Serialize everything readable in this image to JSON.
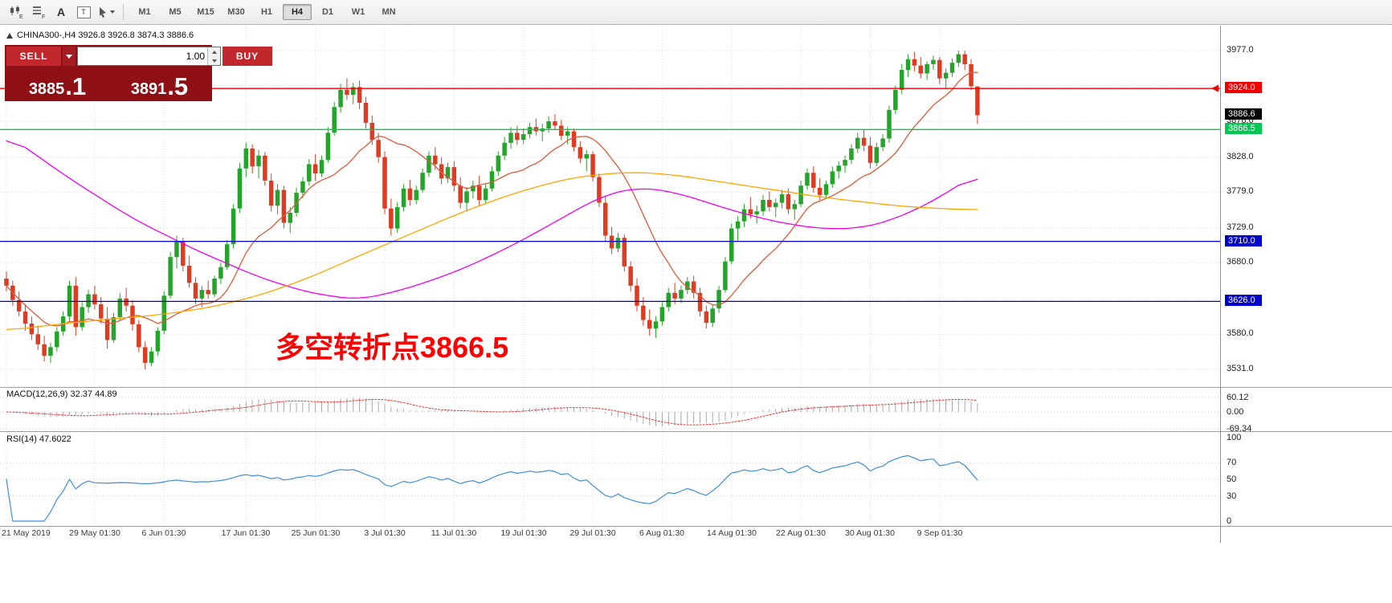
{
  "toolbar": {
    "timeframes": [
      "M1",
      "M5",
      "M15",
      "M30",
      "H1",
      "H4",
      "D1",
      "W1",
      "MN"
    ],
    "active_timeframe": "H4",
    "icon_badges": {
      "chart": "E",
      "list": "F",
      "text_tool": "A",
      "textbox": "T"
    }
  },
  "chart_header": {
    "text": "CHINA300-,H4  3926.8 3926.8 3874.3 3886.6"
  },
  "trade_panel": {
    "sell_label": "SELL",
    "buy_label": "BUY",
    "volume": "1.00",
    "sell_price_main": "3885",
    "sell_price_frac": ".1",
    "buy_price_main": "3891",
    "buy_price_frac": ".5"
  },
  "annotation": {
    "text": "多空转折点3866.5",
    "color": "#ff0000"
  },
  "price_axis": {
    "grid_labels": [
      {
        "text": "3977.0",
        "price": 3977
      },
      {
        "text": "3878.0",
        "price": 3878
      },
      {
        "text": "3828.0",
        "price": 3828
      },
      {
        "text": "3779.0",
        "price": 3779
      },
      {
        "text": "3729.0",
        "price": 3729
      },
      {
        "text": "3680.0",
        "price": 3680
      },
      {
        "text": "3580.0",
        "price": 3580
      },
      {
        "text": "3531.0",
        "price": 3531
      }
    ],
    "line_labels": [
      {
        "text": "3924.0",
        "price": 3924,
        "color": "#ee0000"
      },
      {
        "text": "3886.6",
        "price": 3886.6,
        "color": "#000000"
      },
      {
        "text": "3866.5",
        "price": 3866.5,
        "color": "#00c853"
      },
      {
        "text": "3710.0",
        "price": 3710,
        "color": "#0000cd"
      },
      {
        "text": "3626.0",
        "price": 3626,
        "color": "#0000cd"
      }
    ]
  },
  "macd": {
    "label": "MACD(12,26,9)",
    "values": "32.37 44.89",
    "axis": [
      {
        "text": "60.12",
        "value": 60.12
      },
      {
        "text": "0.00",
        "value": 0
      },
      {
        "text": "-69.34",
        "value": -69.34
      }
    ],
    "fast": 12,
    "slow": 26,
    "signal": 9
  },
  "rsi": {
    "label": "RSI(14)",
    "value": "47.6022",
    "period": 14,
    "axis": [
      {
        "text": "100",
        "value": 100
      },
      {
        "text": "70",
        "value": 70
      },
      {
        "text": "50",
        "value": 50
      },
      {
        "text": "30",
        "value": 30
      },
      {
        "text": "0",
        "value": 0
      }
    ],
    "levels": [
      70,
      50,
      30
    ]
  },
  "time_axis": {
    "labels": [
      {
        "bar": 0,
        "text": "21 May 2019"
      },
      {
        "bar": 14,
        "text": "29 May 01:30"
      },
      {
        "bar": 25,
        "text": "6 Jun 01:30"
      },
      {
        "bar": 38,
        "text": "17 Jun 01:30"
      },
      {
        "bar": 49,
        "text": "25 Jun 01:30"
      },
      {
        "bar": 60,
        "text": "3 Jul 01:30"
      },
      {
        "bar": 71,
        "text": "11 Jul 01:30"
      },
      {
        "bar": 82,
        "text": "19 Jul 01:30"
      },
      {
        "bar": 93,
        "text": "29 Jul 01:30"
      },
      {
        "bar": 104,
        "text": "6 Aug 01:30"
      },
      {
        "bar": 115,
        "text": "14 Aug 01:30"
      },
      {
        "bar": 126,
        "text": "22 Aug 01:30"
      },
      {
        "bar": 137,
        "text": "30 Aug 01:30"
      },
      {
        "bar": 148,
        "text": "9 Sep 01:30"
      }
    ]
  },
  "colors": {
    "bull": "#26a32a",
    "bear": "#dd3c23",
    "ma_fast": "#d95b3b",
    "ma_magenta": "#f000f0",
    "ma_orange": "#ffa500",
    "grid": "#dfdfdf",
    "macd_hist": "#a8a8a8",
    "macd_signal": "#ff2a2a",
    "rsi": "#3f8edc"
  },
  "chart_data": {
    "type": "candlestick",
    "symbol": "CHINA300-",
    "timeframe": "H4",
    "ohlc_current": {
      "open": 3926.8,
      "high": 3926.8,
      "low": 3874.3,
      "close": 3886.6
    },
    "ylim": [
      3520,
      3992
    ],
    "y_grid": [
      3977,
      3928,
      3878,
      3828,
      3779,
      3729,
      3680,
      3630,
      3580,
      3531
    ],
    "hlines": [
      {
        "price": 3924.0,
        "color": "#ee0000"
      },
      {
        "price": 3866.5,
        "color": "#00c853"
      },
      {
        "price": 3710.0,
        "color": "#0000cd"
      },
      {
        "price": 3626.0,
        "color": "#0000cd"
      }
    ],
    "ma_fast_period": 14,
    "ma_magenta": [
      [
        0,
        3860
      ],
      [
        10,
        3798
      ],
      [
        20,
        3742
      ],
      [
        30,
        3698
      ],
      [
        40,
        3660
      ],
      [
        48,
        3638
      ],
      [
        56,
        3628
      ],
      [
        64,
        3645
      ],
      [
        72,
        3670
      ],
      [
        80,
        3703
      ],
      [
        88,
        3742
      ],
      [
        94,
        3772
      ],
      [
        100,
        3786
      ],
      [
        106,
        3779
      ],
      [
        112,
        3762
      ],
      [
        118,
        3746
      ],
      [
        124,
        3734
      ],
      [
        130,
        3727
      ],
      [
        136,
        3729
      ],
      [
        140,
        3739
      ],
      [
        144,
        3753
      ],
      [
        148,
        3772
      ],
      [
        151,
        3788
      ],
      [
        154,
        3806
      ]
    ],
    "ma_orange": [
      [
        0,
        3585
      ],
      [
        8,
        3594
      ],
      [
        16,
        3601
      ],
      [
        24,
        3607
      ],
      [
        32,
        3617
      ],
      [
        40,
        3634
      ],
      [
        48,
        3659
      ],
      [
        56,
        3690
      ],
      [
        64,
        3720
      ],
      [
        72,
        3750
      ],
      [
        80,
        3776
      ],
      [
        88,
        3796
      ],
      [
        94,
        3804
      ],
      [
        100,
        3807
      ],
      [
        106,
        3803
      ],
      [
        112,
        3795
      ],
      [
        118,
        3787
      ],
      [
        124,
        3779
      ],
      [
        130,
        3771
      ],
      [
        136,
        3765
      ],
      [
        142,
        3759
      ],
      [
        148,
        3756
      ],
      [
        154,
        3754
      ]
    ],
    "candles": [
      [
        3658,
        3668,
        3640,
        3648
      ],
      [
        3648,
        3655,
        3620,
        3628
      ],
      [
        3628,
        3640,
        3605,
        3612
      ],
      [
        3612,
        3622,
        3585,
        3595
      ],
      [
        3595,
        3605,
        3572,
        3580
      ],
      [
        3580,
        3592,
        3558,
        3566
      ],
      [
        3566,
        3578,
        3542,
        3550
      ],
      [
        3550,
        3568,
        3540,
        3562
      ],
      [
        3562,
        3590,
        3556,
        3584
      ],
      [
        3584,
        3612,
        3578,
        3605
      ],
      [
        3605,
        3655,
        3598,
        3648
      ],
      [
        3648,
        3660,
        3578,
        3590
      ],
      [
        3590,
        3625,
        3585,
        3618
      ],
      [
        3618,
        3642,
        3610,
        3636
      ],
      [
        3636,
        3648,
        3615,
        3622
      ],
      [
        3622,
        3632,
        3595,
        3602
      ],
      [
        3602,
        3618,
        3560,
        3572
      ],
      [
        3572,
        3610,
        3568,
        3604
      ],
      [
        3604,
        3638,
        3598,
        3630
      ],
      [
        3630,
        3645,
        3612,
        3620
      ],
      [
        3620,
        3628,
        3585,
        3594
      ],
      [
        3594,
        3600,
        3555,
        3562
      ],
      [
        3562,
        3570,
        3531,
        3540
      ],
      [
        3540,
        3562,
        3535,
        3556
      ],
      [
        3556,
        3590,
        3550,
        3585
      ],
      [
        3585,
        3640,
        3580,
        3634
      ],
      [
        3634,
        3695,
        3630,
        3688
      ],
      [
        3688,
        3718,
        3672,
        3710
      ],
      [
        3710,
        3715,
        3668,
        3676
      ],
      [
        3676,
        3690,
        3645,
        3652
      ],
      [
        3652,
        3660,
        3622,
        3630
      ],
      [
        3630,
        3648,
        3618,
        3642
      ],
      [
        3642,
        3655,
        3630,
        3636
      ],
      [
        3636,
        3662,
        3632,
        3658
      ],
      [
        3658,
        3680,
        3650,
        3674
      ],
      [
        3674,
        3712,
        3670,
        3706
      ],
      [
        3706,
        3762,
        3700,
        3756
      ],
      [
        3756,
        3820,
        3750,
        3812
      ],
      [
        3812,
        3848,
        3800,
        3840
      ],
      [
        3840,
        3846,
        3805,
        3815
      ],
      [
        3815,
        3838,
        3798,
        3830
      ],
      [
        3830,
        3835,
        3788,
        3795
      ],
      [
        3795,
        3805,
        3752,
        3760
      ],
      [
        3760,
        3790,
        3748,
        3782
      ],
      [
        3782,
        3788,
        3728,
        3736
      ],
      [
        3736,
        3758,
        3722,
        3750
      ],
      [
        3750,
        3785,
        3745,
        3778
      ],
      [
        3778,
        3800,
        3770,
        3794
      ],
      [
        3794,
        3825,
        3788,
        3818
      ],
      [
        3818,
        3832,
        3795,
        3805
      ],
      [
        3805,
        3830,
        3800,
        3824
      ],
      [
        3824,
        3870,
        3820,
        3862
      ],
      [
        3862,
        3905,
        3858,
        3898
      ],
      [
        3898,
        3930,
        3890,
        3922
      ],
      [
        3922,
        3938,
        3908,
        3915
      ],
      [
        3915,
        3932,
        3902,
        3926
      ],
      [
        3926,
        3935,
        3895,
        3904
      ],
      [
        3904,
        3912,
        3868,
        3876
      ],
      [
        3876,
        3886,
        3845,
        3852
      ],
      [
        3852,
        3862,
        3820,
        3828
      ],
      [
        3828,
        3836,
        3748,
        3756
      ],
      [
        3756,
        3770,
        3718,
        3728
      ],
      [
        3728,
        3765,
        3722,
        3758
      ],
      [
        3758,
        3790,
        3752,
        3784
      ],
      [
        3784,
        3796,
        3760,
        3768
      ],
      [
        3768,
        3788,
        3762,
        3782
      ],
      [
        3782,
        3812,
        3778,
        3806
      ],
      [
        3806,
        3836,
        3800,
        3830
      ],
      [
        3830,
        3842,
        3810,
        3818
      ],
      [
        3818,
        3828,
        3790,
        3798
      ],
      [
        3798,
        3820,
        3792,
        3814
      ],
      [
        3814,
        3822,
        3780,
        3788
      ],
      [
        3788,
        3800,
        3756,
        3764
      ],
      [
        3764,
        3786,
        3752,
        3780
      ],
      [
        3780,
        3795,
        3770,
        3788
      ],
      [
        3788,
        3802,
        3760,
        3768
      ],
      [
        3768,
        3790,
        3762,
        3784
      ],
      [
        3784,
        3815,
        3780,
        3808
      ],
      [
        3808,
        3836,
        3802,
        3830
      ],
      [
        3830,
        3856,
        3824,
        3848
      ],
      [
        3848,
        3870,
        3840,
        3862
      ],
      [
        3862,
        3872,
        3845,
        3852
      ],
      [
        3852,
        3868,
        3846,
        3860
      ],
      [
        3860,
        3876,
        3854,
        3870
      ],
      [
        3870,
        3882,
        3858,
        3864
      ],
      [
        3864,
        3875,
        3850,
        3868
      ],
      [
        3868,
        3885,
        3862,
        3878
      ],
      [
        3878,
        3888,
        3866,
        3872
      ],
      [
        3872,
        3880,
        3852,
        3858
      ],
      [
        3858,
        3870,
        3846,
        3864
      ],
      [
        3864,
        3868,
        3836,
        3842
      ],
      [
        3842,
        3850,
        3820,
        3826
      ],
      [
        3826,
        3838,
        3808,
        3832
      ],
      [
        3832,
        3836,
        3794,
        3800
      ],
      [
        3800,
        3805,
        3758,
        3764
      ],
      [
        3764,
        3772,
        3710,
        3718
      ],
      [
        3718,
        3730,
        3692,
        3700
      ],
      [
        3700,
        3722,
        3695,
        3715
      ],
      [
        3715,
        3720,
        3668,
        3675
      ],
      [
        3675,
        3682,
        3640,
        3648
      ],
      [
        3648,
        3658,
        3612,
        3620
      ],
      [
        3620,
        3632,
        3592,
        3600
      ],
      [
        3600,
        3615,
        3578,
        3588
      ],
      [
        3588,
        3605,
        3575,
        3598
      ],
      [
        3598,
        3625,
        3592,
        3618
      ],
      [
        3618,
        3645,
        3612,
        3638
      ],
      [
        3638,
        3652,
        3622,
        3630
      ],
      [
        3630,
        3648,
        3624,
        3642
      ],
      [
        3642,
        3660,
        3636,
        3654
      ],
      [
        3654,
        3662,
        3630,
        3638
      ],
      [
        3638,
        3645,
        3605,
        3612
      ],
      [
        3612,
        3620,
        3588,
        3596
      ],
      [
        3596,
        3622,
        3590,
        3616
      ],
      [
        3616,
        3648,
        3610,
        3642
      ],
      [
        3642,
        3688,
        3638,
        3682
      ],
      [
        3682,
        3735,
        3678,
        3728
      ],
      [
        3728,
        3745,
        3710,
        3738
      ],
      [
        3738,
        3762,
        3730,
        3755
      ],
      [
        3755,
        3772,
        3742,
        3748
      ],
      [
        3748,
        3760,
        3735,
        3752
      ],
      [
        3752,
        3775,
        3746,
        3768
      ],
      [
        3768,
        3780,
        3752,
        3758
      ],
      [
        3758,
        3770,
        3744,
        3764
      ],
      [
        3764,
        3782,
        3756,
        3776
      ],
      [
        3776,
        3784,
        3748,
        3755
      ],
      [
        3755,
        3768,
        3740,
        3762
      ],
      [
        3762,
        3795,
        3758,
        3788
      ],
      [
        3788,
        3812,
        3782,
        3806
      ],
      [
        3806,
        3815,
        3778,
        3785
      ],
      [
        3785,
        3798,
        3768,
        3775
      ],
      [
        3775,
        3795,
        3770,
        3790
      ],
      [
        3790,
        3815,
        3785,
        3808
      ],
      [
        3808,
        3822,
        3798,
        3816
      ],
      [
        3816,
        3830,
        3806,
        3824
      ],
      [
        3824,
        3846,
        3818,
        3840
      ],
      [
        3840,
        3862,
        3834,
        3855
      ],
      [
        3855,
        3866,
        3836,
        3844
      ],
      [
        3844,
        3856,
        3812,
        3820
      ],
      [
        3820,
        3848,
        3815,
        3842
      ],
      [
        3842,
        3860,
        3836,
        3854
      ],
      [
        3854,
        3900,
        3848,
        3894
      ],
      [
        3894,
        3928,
        3888,
        3922
      ],
      [
        3922,
        3958,
        3916,
        3950
      ],
      [
        3950,
        3972,
        3940,
        3965
      ],
      [
        3965,
        3975,
        3948,
        3956
      ],
      [
        3956,
        3968,
        3938,
        3945
      ],
      [
        3945,
        3962,
        3936,
        3958
      ],
      [
        3958,
        3970,
        3950,
        3964
      ],
      [
        3964,
        3968,
        3930,
        3938
      ],
      [
        3938,
        3952,
        3924,
        3946
      ],
      [
        3946,
        3966,
        3940,
        3960
      ],
      [
        3960,
        3977,
        3954,
        3972
      ],
      [
        3972,
        3977,
        3950,
        3958
      ],
      [
        3958,
        3965,
        3922,
        3927
      ],
      [
        3926.8,
        3926.8,
        3874.3,
        3886.6
      ]
    ]
  }
}
